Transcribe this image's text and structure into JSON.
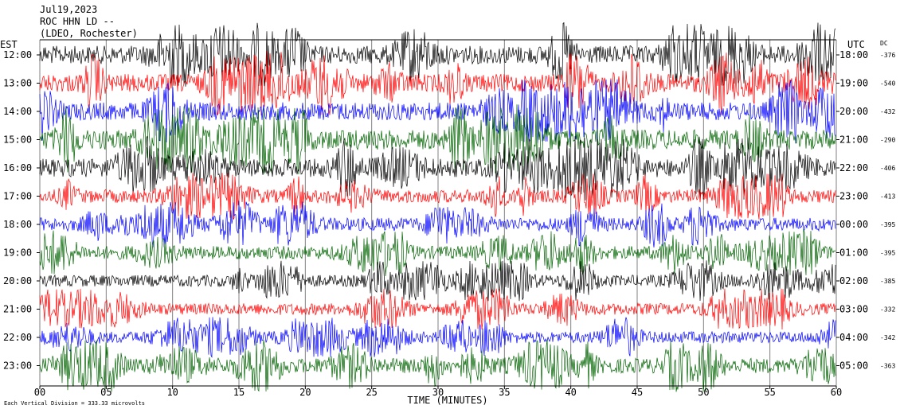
{
  "header": {
    "date": "Jul19,2023",
    "station": "ROC HHN LD --",
    "location": "(LDEO, Rochester)"
  },
  "left_axis_label": "EST",
  "right_axis_label": "UTC",
  "dc_label": "DC",
  "footer": {
    "scale_note": "Each Vertical Division = 333.33 microvolts",
    "xlabel": "TIME (MINUTES)"
  },
  "colors": {
    "trace_cycle": [
      "#000000",
      "#ff0000",
      "#0000ff",
      "#006400"
    ],
    "grid": "#808080",
    "background": "#ffffff"
  },
  "chart_data": {
    "type": "line",
    "title": "Jul19,2023 ROC HHN LD -- (LDEO, Rochester)",
    "xlabel": "TIME (MINUTES)",
    "ylabel": "",
    "xlim": [
      0,
      60
    ],
    "x_ticks": [
      "00",
      "05",
      "10",
      "15",
      "20",
      "25",
      "30",
      "35",
      "40",
      "45",
      "50",
      "55",
      "60"
    ],
    "grid": true,
    "rows": [
      {
        "est": "12:00",
        "utc": "18:00",
        "dc": "-376",
        "color": "#000000",
        "amplitude": 0.55
      },
      {
        "est": "13:00",
        "utc": "19:00",
        "dc": "-540",
        "color": "#ff0000",
        "amplitude": 0.55
      },
      {
        "est": "14:00",
        "utc": "20:00",
        "dc": "-432",
        "color": "#0000ff",
        "amplitude": 0.55
      },
      {
        "est": "15:00",
        "utc": "21:00",
        "dc": "-290",
        "color": "#006400",
        "amplitude": 0.6
      },
      {
        "est": "16:00",
        "utc": "22:00",
        "dc": "-406",
        "color": "#000000",
        "amplitude": 0.55
      },
      {
        "est": "17:00",
        "utc": "23:00",
        "dc": "-413",
        "color": "#ff0000",
        "amplitude": 0.4
      },
      {
        "est": "18:00",
        "utc": "00:00",
        "dc": "-395",
        "color": "#0000ff",
        "amplitude": 0.4
      },
      {
        "est": "19:00",
        "utc": "01:00",
        "dc": "-395",
        "color": "#006400",
        "amplitude": 0.4
      },
      {
        "est": "20:00",
        "utc": "02:00",
        "dc": "-385",
        "color": "#000000",
        "amplitude": 0.35
      },
      {
        "est": "21:00",
        "utc": "03:00",
        "dc": "-332",
        "color": "#ff0000",
        "amplitude": 0.35
      },
      {
        "est": "22:00",
        "utc": "04:00",
        "dc": "-342",
        "color": "#0000ff",
        "amplitude": 0.35
      },
      {
        "est": "23:00",
        "utc": "05:00",
        "dc": "-363",
        "color": "#006400",
        "amplitude": 0.45
      }
    ]
  }
}
